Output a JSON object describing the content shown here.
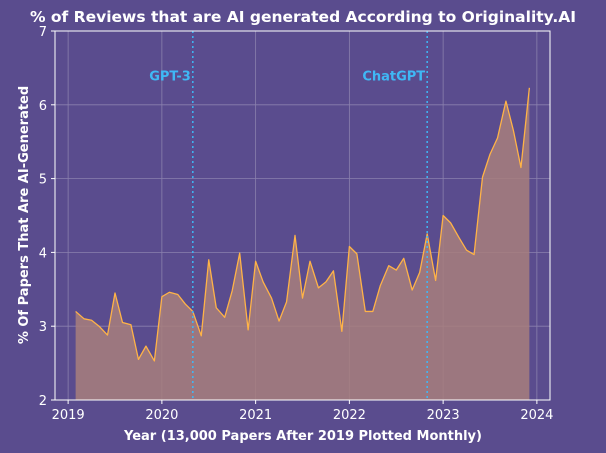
{
  "chart_data": {
    "type": "area",
    "title": "% of Reviews that are AI generated According to Originality.AI",
    "xlabel": "Year (13,000 Papers After 2019 Plotted Monthly)",
    "ylabel": "% Of Papers That Are AI-Generated",
    "xlim": [
      2018.86,
      2024.14
    ],
    "ylim": [
      2,
      7
    ],
    "x_ticks": [
      2019,
      2020,
      2021,
      2022,
      2023,
      2024
    ],
    "x_tick_labels": [
      "2019",
      "2020",
      "2021",
      "2022",
      "2023",
      "2024"
    ],
    "y_ticks": [
      2,
      3,
      4,
      5,
      6,
      7
    ],
    "y_tick_labels": [
      "2",
      "3",
      "4",
      "5",
      "6",
      "7"
    ],
    "grid": true,
    "series": [
      {
        "color": "#ffb347",
        "fill": "#a87f7c",
        "x": [
          2019.08,
          2019.17,
          2019.25,
          2019.33,
          2019.42,
          2019.5,
          2019.58,
          2019.67,
          2019.75,
          2019.83,
          2019.92,
          2020.0,
          2020.08,
          2020.17,
          2020.25,
          2020.33,
          2020.42,
          2020.5,
          2020.58,
          2020.67,
          2020.75,
          2020.83,
          2020.92,
          2021.0,
          2021.08,
          2021.17,
          2021.25,
          2021.33,
          2021.42,
          2021.5,
          2021.58,
          2021.67,
          2021.75,
          2021.83,
          2021.92,
          2022.0,
          2022.08,
          2022.17,
          2022.25,
          2022.33,
          2022.42,
          2022.5,
          2022.58,
          2022.67,
          2022.75,
          2022.83,
          2022.92,
          2023.0,
          2023.08,
          2023.17,
          2023.25,
          2023.33,
          2023.42,
          2023.5,
          2023.58,
          2023.67,
          2023.75,
          2023.83,
          2023.92
        ],
        "y": [
          3.2,
          3.1,
          3.08,
          3.0,
          2.88,
          3.45,
          3.05,
          3.02,
          2.55,
          2.73,
          2.53,
          3.4,
          3.46,
          3.43,
          3.3,
          3.2,
          2.87,
          3.9,
          3.25,
          3.12,
          3.48,
          3.99,
          2.95,
          3.88,
          3.6,
          3.38,
          3.07,
          3.33,
          4.23,
          3.38,
          3.88,
          3.52,
          3.6,
          3.75,
          2.93,
          4.08,
          3.98,
          3.2,
          3.2,
          3.55,
          3.82,
          3.76,
          3.92,
          3.49,
          3.73,
          4.25,
          3.62,
          4.5,
          4.4,
          4.2,
          4.03,
          3.97,
          5.02,
          5.33,
          5.55,
          6.05,
          5.65,
          5.15,
          6.23
        ]
      }
    ],
    "annotations": [
      {
        "x": 2020.33,
        "text": "GPT-3",
        "y": 6.4,
        "color": "#3fb8f5"
      },
      {
        "x": 2022.83,
        "text": "ChatGPT",
        "y": 6.4,
        "color": "#3fb8f5"
      }
    ],
    "colors": {
      "background": "#5a4c8e",
      "plot_background": "#5a4c8e",
      "grid": "#8a80ae",
      "axis": "#ffffff",
      "vline": "#3fb8f5"
    }
  }
}
